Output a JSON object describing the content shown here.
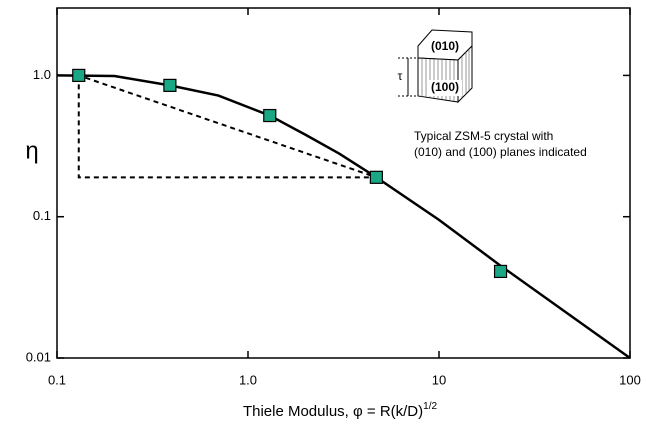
{
  "chart_data": {
    "type": "line",
    "x_label": "Thiele Modulus, φ = R(k/D)",
    "x_label_superscript": "1/2",
    "y_label": "η",
    "log_x": true,
    "log_y": true,
    "xlim": [
      0.1,
      100
    ],
    "xticks": [
      0.1,
      {
        "value": 1,
        "label": "1.0"
      },
      10,
      100
    ],
    "ylim": [
      0.01,
      3
    ],
    "yticks": [
      0.01,
      0.1,
      {
        "value": 1,
        "label": "1.0"
      }
    ],
    "series": [
      {
        "color": "#000000",
        "marker": false,
        "x": [
          0.1,
          0.2,
          0.39,
          0.7,
          1.3,
          2,
          3,
          4.7,
          10,
          21,
          100
        ],
        "values": [
          1.0,
          0.99,
          0.85,
          0.72,
          0.52,
          0.38,
          0.28,
          0.19,
          0.095,
          0.045,
          0.01
        ]
      },
      {
        "color": "#1aa884",
        "marker": true,
        "x": [
          0.13,
          0.39,
          1.3,
          4.7,
          21
        ],
        "values": [
          1.0,
          0.85,
          0.52,
          0.19,
          0.041
        ]
      }
    ],
    "dashed_lines": [
      {
        "x": [
          0.13,
          0.13,
          4.7,
          0.13
        ],
        "values": [
          1.0,
          0.19,
          0.19,
          1.0
        ]
      }
    ],
    "inset": {
      "top_face": "(010)",
      "front_face": "(100)",
      "thickness": "τ",
      "caption": [
        "Typical ZSM-5 crystal with",
        "(010) and (100) planes indicated"
      ]
    }
  }
}
